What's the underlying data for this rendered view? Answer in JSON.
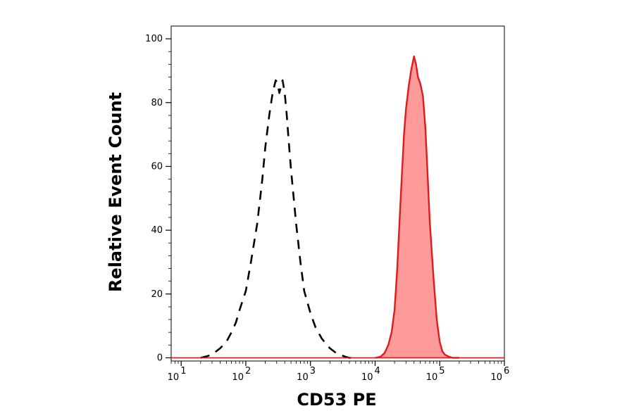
{
  "chart_data": {
    "type": "area",
    "title": "",
    "xlabel": "CD53 PE",
    "ylabel": "Relative Event Count",
    "xscale": "log",
    "xlim": [
      7,
      1000000
    ],
    "ylim": [
      -1,
      104
    ],
    "grid": false,
    "legend": "none",
    "x_ticks": [
      {
        "value": 10,
        "base": "10",
        "exp": "1"
      },
      {
        "value": 100,
        "base": "10",
        "exp": "2"
      },
      {
        "value": 1000,
        "base": "10",
        "exp": "3"
      },
      {
        "value": 10000,
        "base": "10",
        "exp": "4"
      },
      {
        "value": 100000,
        "base": "10",
        "exp": "5"
      },
      {
        "value": 1000000,
        "base": "10",
        "exp": "6"
      }
    ],
    "y_ticks": [
      0,
      20,
      40,
      60,
      80,
      100
    ],
    "series": [
      {
        "style": "dashed",
        "color": "#000000",
        "fill": "none",
        "x": [
          20,
          25,
          30,
          40,
          50,
          60,
          70,
          80,
          100,
          120,
          150,
          180,
          200,
          230,
          260,
          290,
          310,
          330,
          350,
          370,
          400,
          430,
          460,
          500,
          600,
          700,
          800,
          1000,
          1200,
          1500,
          2000,
          2500,
          3000,
          3500,
          4000,
          5000
        ],
        "y": [
          0,
          0.5,
          1,
          3,
          5,
          8,
          11,
          15,
          21,
          30,
          42,
          56,
          66,
          76,
          83,
          87,
          86,
          83,
          85,
          87,
          83,
          76,
          68,
          59,
          42,
          30,
          21,
          14,
          9.5,
          6,
          3,
          1.5,
          0.8,
          0.3,
          0,
          0
        ]
      },
      {
        "style": "solid",
        "color": "#e01b1b",
        "fill": "#ff9a9a",
        "x": [
          10000,
          12000,
          14000,
          16000,
          18000,
          20000,
          22000,
          25000,
          28000,
          30000,
          33000,
          36000,
          40000,
          43000,
          46000,
          50000,
          55000,
          60000,
          65000,
          70000,
          80000,
          90000,
          100000,
          110000,
          120000,
          140000,
          160000,
          180000,
          200000
        ],
        "y": [
          0,
          0.3,
          1.5,
          4,
          8,
          15,
          28,
          51,
          70,
          78,
          85,
          90,
          94.5,
          92,
          88,
          86,
          82,
          72,
          57,
          43,
          25,
          12,
          5,
          2,
          1,
          0.3,
          0,
          0,
          0
        ]
      }
    ]
  }
}
